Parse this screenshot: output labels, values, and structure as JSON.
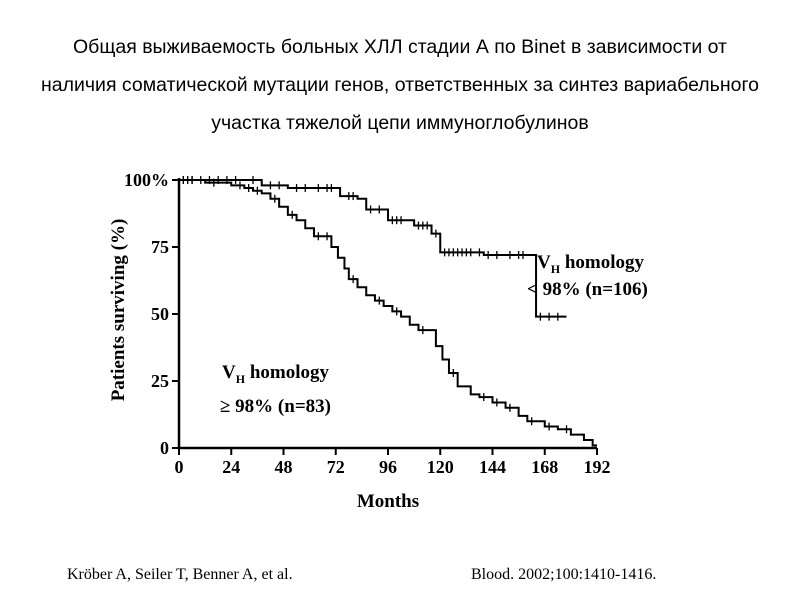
{
  "slide": {
    "title": "Общая выживаемость больных ХЛЛ стадии А по Binet в зависимости от наличия соматической мутации генов, ответственных за синтез вариабельного участка тяжелой цепи иммуноглобулинов"
  },
  "reference": {
    "authors": "Kröber A, Seiler T, Benner A, et al.",
    "citation": "Blood. 2002;100:1410-1416."
  },
  "chart_data": {
    "type": "line",
    "step": true,
    "ylabel": "Patients surviving (%)",
    "xlabel": "Months",
    "xlim": [
      0,
      192
    ],
    "ylim": [
      0,
      100
    ],
    "x_ticks": [
      "0",
      "24",
      "48",
      "72",
      "96",
      "120",
      "144",
      "168",
      "192"
    ],
    "y_ticks": [
      "0",
      "25",
      "50",
      "75",
      "100%"
    ],
    "annotations": [
      {
        "line1": "V",
        "sub": "H",
        "line1_rest": " homology",
        "line2": "< 98% (n=106)"
      },
      {
        "line1": "V",
        "sub": "H",
        "line1_rest": " homology",
        "line2": "≥ 98% (n=83)"
      }
    ],
    "series": [
      {
        "points": [
          [
            0,
            100
          ],
          [
            30,
            100
          ],
          [
            38,
            98
          ],
          [
            50,
            97
          ],
          [
            60,
            97
          ],
          [
            74,
            94
          ],
          [
            82,
            93
          ],
          [
            86,
            89
          ],
          [
            94,
            89
          ],
          [
            96,
            85
          ],
          [
            105,
            85
          ],
          [
            108,
            83
          ],
          [
            116,
            80
          ],
          [
            120,
            73
          ],
          [
            135,
            73
          ],
          [
            140,
            72
          ],
          [
            145,
            72
          ],
          [
            150,
            72
          ],
          [
            160,
            72
          ],
          [
            164,
            49
          ],
          [
            178,
            49
          ]
        ],
        "censor_x": [
          2,
          6,
          10,
          14,
          18,
          22,
          26,
          34,
          42,
          46,
          54,
          58,
          64,
          68,
          70,
          78,
          80,
          88,
          92,
          98,
          100,
          102,
          110,
          112,
          114,
          118,
          122,
          124,
          126,
          128,
          130,
          132,
          134,
          138,
          142,
          146,
          152,
          156,
          158,
          166,
          170,
          174
        ]
      },
      {
        "points": [
          [
            0,
            100
          ],
          [
            8,
            100
          ],
          [
            12,
            99
          ],
          [
            20,
            99
          ],
          [
            24,
            98
          ],
          [
            30,
            97
          ],
          [
            34,
            96
          ],
          [
            38,
            95
          ],
          [
            42,
            93
          ],
          [
            46,
            90
          ],
          [
            50,
            87
          ],
          [
            54,
            85
          ],
          [
            58,
            82
          ],
          [
            62,
            79
          ],
          [
            66,
            79
          ],
          [
            70,
            75
          ],
          [
            73,
            71
          ],
          [
            76,
            67
          ],
          [
            78,
            63
          ],
          [
            82,
            60
          ],
          [
            86,
            57
          ],
          [
            90,
            55
          ],
          [
            94,
            53
          ],
          [
            98,
            51
          ],
          [
            102,
            49
          ],
          [
            106,
            46
          ],
          [
            110,
            44
          ],
          [
            116,
            44
          ],
          [
            118,
            38
          ],
          [
            121,
            33
          ],
          [
            124,
            28
          ],
          [
            128,
            23
          ],
          [
            134,
            20
          ],
          [
            138,
            19
          ],
          [
            144,
            17
          ],
          [
            150,
            15
          ],
          [
            156,
            12
          ],
          [
            160,
            10
          ],
          [
            168,
            8
          ],
          [
            174,
            7
          ],
          [
            180,
            5
          ],
          [
            186,
            3
          ],
          [
            190,
            1
          ],
          [
            192,
            1
          ]
        ],
        "censor_x": [
          2,
          4,
          6,
          16,
          28,
          32,
          36,
          44,
          52,
          64,
          68,
          80,
          92,
          100,
          112,
          126,
          140,
          146,
          152,
          162,
          170,
          178
        ]
      }
    ]
  }
}
